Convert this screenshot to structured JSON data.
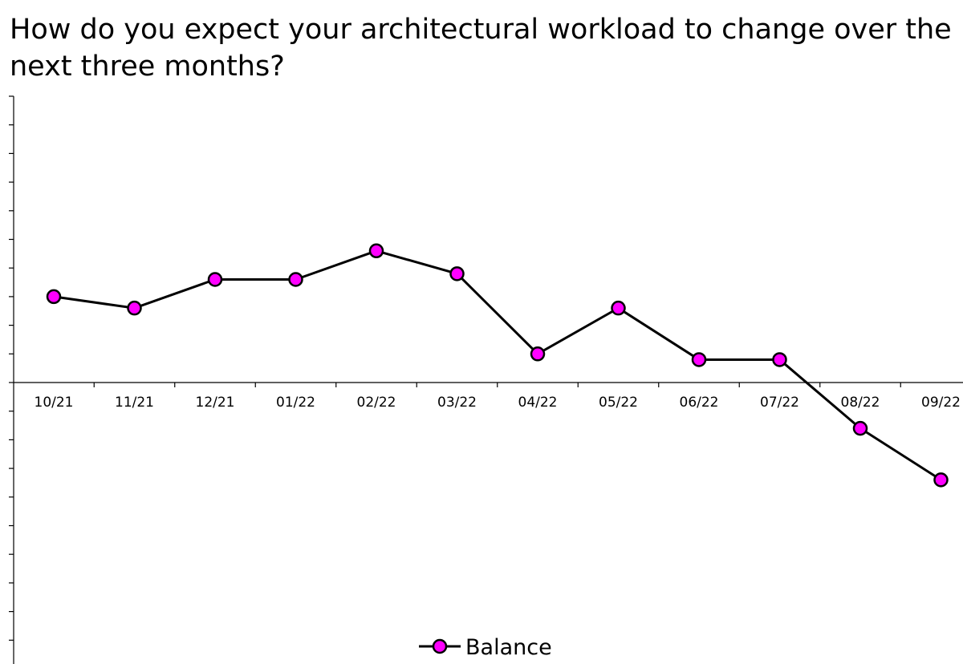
{
  "chart_data": {
    "type": "line",
    "title": "How do you expect your architectural workload to change over the next three months?",
    "categories": [
      "10/21",
      "11/21",
      "12/21",
      "01/22",
      "02/22",
      "03/22",
      "04/22",
      "05/22",
      "06/22",
      "07/22",
      "08/22",
      "09/22"
    ],
    "series": [
      {
        "name": "Balance",
        "values": [
          30,
          26,
          36,
          36,
          46,
          38,
          10,
          26,
          8,
          8,
          -16,
          -34
        ]
      }
    ],
    "xlabel": "",
    "ylabel": "",
    "ylim": [
      -100,
      100
    ],
    "y_tick_step": 10,
    "grid": false,
    "legend": "bottom",
    "colors": {
      "line": "#000000",
      "marker_fill": "#ff00ff",
      "marker_stroke": "#000000",
      "axis": "#000000"
    }
  }
}
